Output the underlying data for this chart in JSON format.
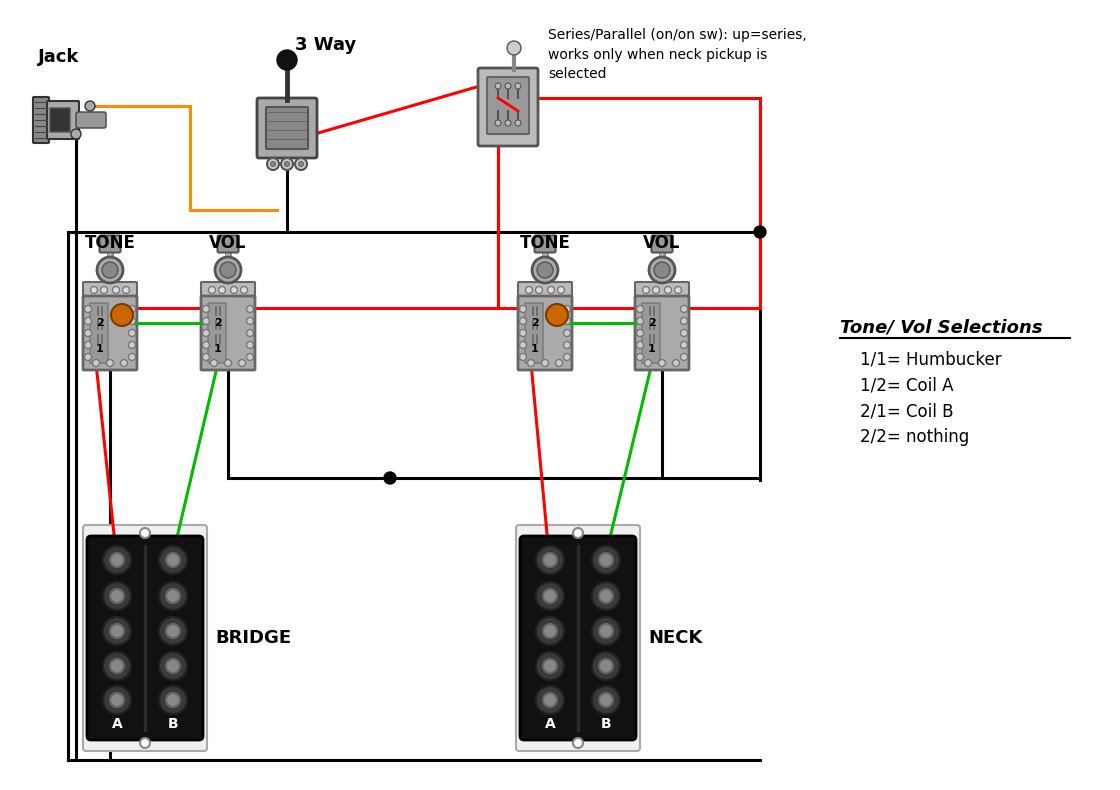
{
  "bg_color": "#ffffff",
  "annotation_series_parallel": "Series/Parallel (on/on sw): up=series,\nworks only when neck pickup is\nselected",
  "label_jack": "Jack",
  "label_3way": "3 Way",
  "label_tone1": "TONE",
  "label_vol1": "VOL",
  "label_tone2": "TONE",
  "label_vol2": "VOL",
  "label_bridge": "BRIDGE",
  "label_neck": "NECK",
  "legend_title": "Tone/ Vol Selections",
  "legend_items": [
    "1/1= Humbucker",
    "1/2= Coil A",
    "2/1= Coil B",
    "2/2= nothing"
  ],
  "wire_orange": "#FF8C00",
  "wire_red": "#FF0000",
  "wire_black": "#000000",
  "wire_green": "#00BB00",
  "orange_cap_color": "#CC6600"
}
